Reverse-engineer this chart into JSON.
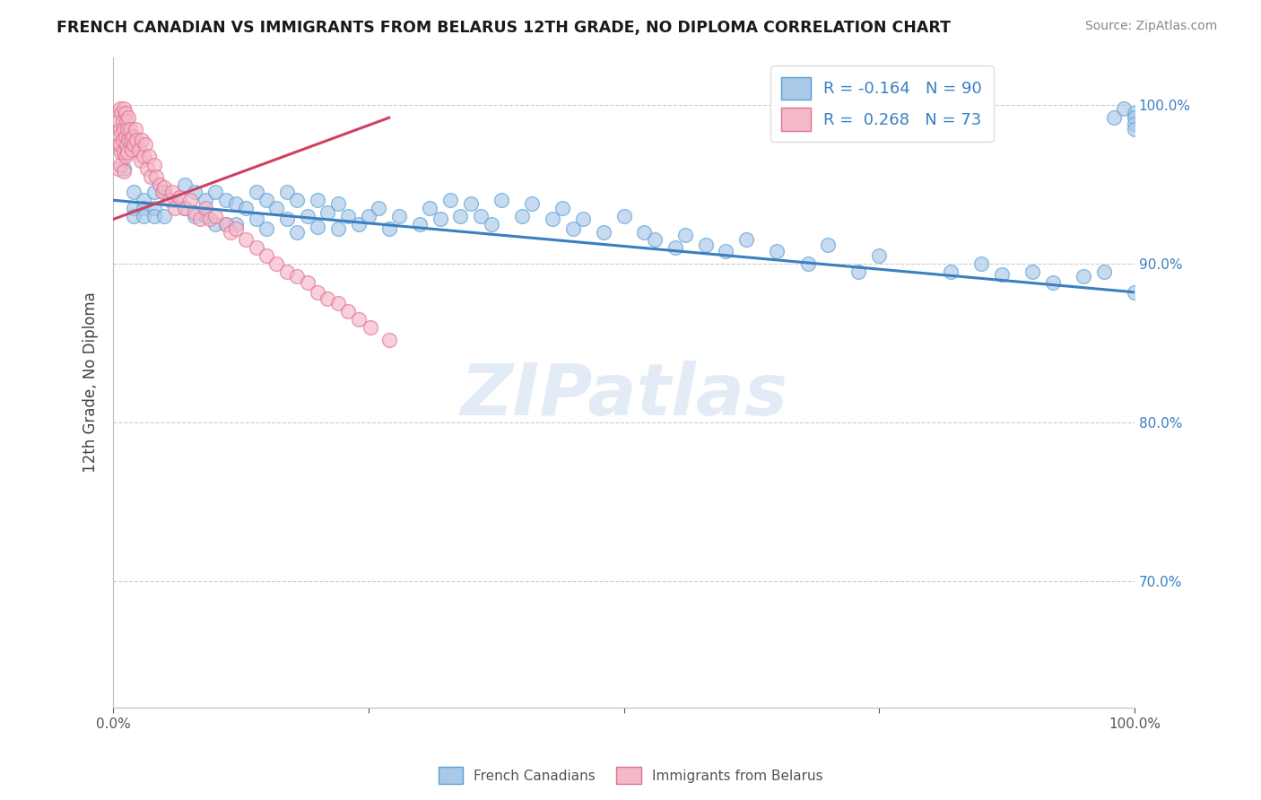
{
  "title": "FRENCH CANADIAN VS IMMIGRANTS FROM BELARUS 12TH GRADE, NO DIPLOMA CORRELATION CHART",
  "source": "Source: ZipAtlas.com",
  "ylabel": "12th Grade, No Diploma",
  "xlim": [
    0.0,
    1.0
  ],
  "ylim": [
    0.62,
    1.03
  ],
  "legend_r_blue": "-0.164",
  "legend_n_blue": "90",
  "legend_r_pink": "0.268",
  "legend_n_pink": "73",
  "legend_label_blue": "French Canadians",
  "legend_label_pink": "Immigrants from Belarus",
  "blue_color": "#aac8e8",
  "pink_color": "#f5b8c8",
  "blue_edge_color": "#5a9fd4",
  "pink_edge_color": "#e07090",
  "blue_line_color": "#3a7fc1",
  "pink_line_color": "#d04060",
  "watermark": "ZIPatlas",
  "blue_scatter_x": [
    0.01,
    0.02,
    0.02,
    0.02,
    0.03,
    0.03,
    0.03,
    0.04,
    0.04,
    0.04,
    0.05,
    0.05,
    0.06,
    0.07,
    0.07,
    0.08,
    0.08,
    0.09,
    0.09,
    0.1,
    0.1,
    0.11,
    0.11,
    0.12,
    0.12,
    0.13,
    0.14,
    0.14,
    0.15,
    0.15,
    0.16,
    0.17,
    0.17,
    0.18,
    0.18,
    0.19,
    0.2,
    0.2,
    0.21,
    0.22,
    0.22,
    0.23,
    0.24,
    0.25,
    0.26,
    0.27,
    0.28,
    0.3,
    0.31,
    0.32,
    0.33,
    0.34,
    0.35,
    0.36,
    0.37,
    0.38,
    0.4,
    0.41,
    0.43,
    0.44,
    0.45,
    0.46,
    0.48,
    0.5,
    0.52,
    0.53,
    0.55,
    0.56,
    0.58,
    0.6,
    0.62,
    0.65,
    0.68,
    0.7,
    0.73,
    0.75,
    0.82,
    0.85,
    0.87,
    0.9,
    0.92,
    0.95,
    0.97,
    0.98,
    0.99,
    1.0,
    1.0,
    1.0,
    1.0,
    1.0
  ],
  "blue_scatter_y": [
    0.96,
    0.945,
    0.935,
    0.93,
    0.94,
    0.935,
    0.93,
    0.945,
    0.935,
    0.93,
    0.945,
    0.93,
    0.94,
    0.95,
    0.935,
    0.945,
    0.93,
    0.94,
    0.93,
    0.945,
    0.925,
    0.94,
    0.925,
    0.938,
    0.925,
    0.935,
    0.945,
    0.928,
    0.94,
    0.922,
    0.935,
    0.945,
    0.928,
    0.94,
    0.92,
    0.93,
    0.94,
    0.923,
    0.932,
    0.938,
    0.922,
    0.93,
    0.925,
    0.93,
    0.935,
    0.922,
    0.93,
    0.925,
    0.935,
    0.928,
    0.94,
    0.93,
    0.938,
    0.93,
    0.925,
    0.94,
    0.93,
    0.938,
    0.928,
    0.935,
    0.922,
    0.928,
    0.92,
    0.93,
    0.92,
    0.915,
    0.91,
    0.918,
    0.912,
    0.908,
    0.915,
    0.908,
    0.9,
    0.912,
    0.895,
    0.905,
    0.895,
    0.9,
    0.893,
    0.895,
    0.888,
    0.892,
    0.895,
    0.992,
    0.998,
    0.995,
    0.992,
    0.988,
    0.985,
    0.882
  ],
  "pink_scatter_x": [
    0.005,
    0.005,
    0.005,
    0.007,
    0.007,
    0.007,
    0.007,
    0.008,
    0.008,
    0.008,
    0.009,
    0.009,
    0.01,
    0.01,
    0.01,
    0.01,
    0.012,
    0.012,
    0.012,
    0.013,
    0.013,
    0.014,
    0.014,
    0.015,
    0.015,
    0.016,
    0.017,
    0.018,
    0.019,
    0.02,
    0.022,
    0.023,
    0.025,
    0.027,
    0.028,
    0.03,
    0.031,
    0.033,
    0.035,
    0.037,
    0.04,
    0.042,
    0.045,
    0.048,
    0.05,
    0.055,
    0.058,
    0.06,
    0.065,
    0.07,
    0.075,
    0.08,
    0.085,
    0.09,
    0.095,
    0.1,
    0.11,
    0.115,
    0.12,
    0.13,
    0.14,
    0.15,
    0.16,
    0.17,
    0.18,
    0.19,
    0.2,
    0.21,
    0.22,
    0.23,
    0.24,
    0.252,
    0.27
  ],
  "pink_scatter_y": [
    0.99,
    0.975,
    0.96,
    0.998,
    0.985,
    0.975,
    0.962,
    0.995,
    0.982,
    0.97,
    0.99,
    0.978,
    0.998,
    0.985,
    0.97,
    0.958,
    0.995,
    0.98,
    0.968,
    0.99,
    0.975,
    0.985,
    0.97,
    0.992,
    0.978,
    0.985,
    0.978,
    0.972,
    0.98,
    0.975,
    0.985,
    0.978,
    0.972,
    0.965,
    0.978,
    0.968,
    0.975,
    0.96,
    0.968,
    0.955,
    0.962,
    0.955,
    0.95,
    0.945,
    0.948,
    0.94,
    0.945,
    0.935,
    0.942,
    0.935,
    0.94,
    0.932,
    0.928,
    0.935,
    0.928,
    0.93,
    0.925,
    0.92,
    0.922,
    0.915,
    0.91,
    0.905,
    0.9,
    0.895,
    0.892,
    0.888,
    0.882,
    0.878,
    0.875,
    0.87,
    0.865,
    0.86,
    0.852
  ],
  "blue_trend_x": [
    0.0,
    1.0
  ],
  "blue_trend_y": [
    0.94,
    0.882
  ],
  "pink_trend_x": [
    0.0,
    0.27
  ],
  "pink_trend_y": [
    0.928,
    0.992
  ]
}
